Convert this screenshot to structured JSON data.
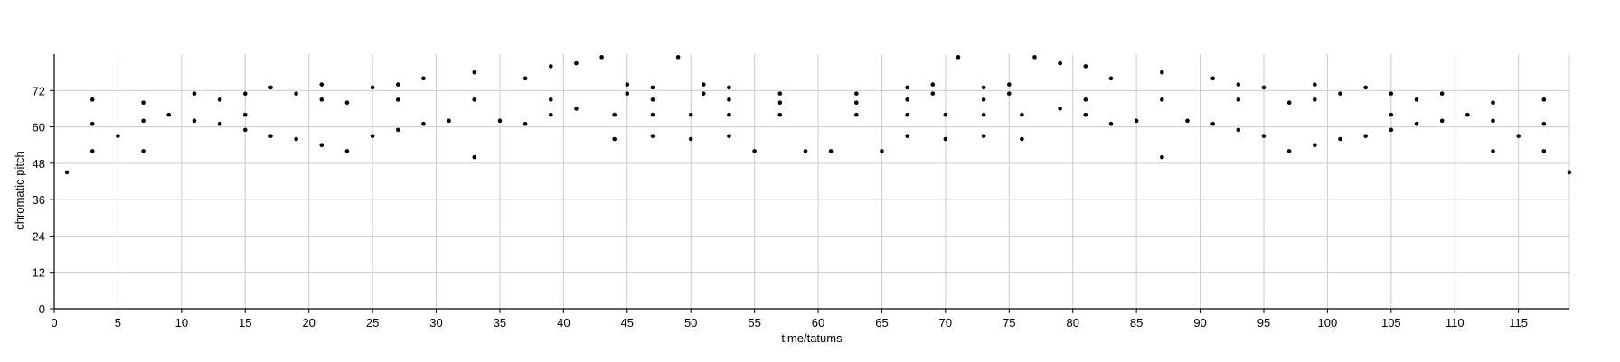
{
  "chart_data": {
    "type": "scatter",
    "title": "",
    "xlabel": "time/tatums",
    "ylabel": "chromatic pitch",
    "xlim": [
      0,
      119
    ],
    "ylim": [
      0,
      84
    ],
    "grid": true,
    "legend": "none",
    "colors": {
      "point": "#000000",
      "grid": "#cccccc",
      "axis": "#000000"
    },
    "x_ticks": [
      0,
      5,
      10,
      15,
      20,
      25,
      30,
      35,
      40,
      45,
      50,
      55,
      60,
      65,
      70,
      75,
      80,
      85,
      90,
      95,
      100,
      105,
      110,
      115
    ],
    "x_tick_labels": [
      "0",
      "5",
      "10",
      "15",
      "20",
      "25",
      "30",
      "35",
      "40",
      "45",
      "50",
      "55",
      "60",
      "65",
      "70",
      "75",
      "80",
      "85",
      "90",
      "95",
      "100",
      "105",
      "110",
      "115"
    ],
    "y_ticks": [
      0,
      12,
      24,
      36,
      48,
      60,
      72
    ],
    "y_tick_labels": [
      "0",
      "12",
      "24",
      "36",
      "48",
      "60",
      "72"
    ],
    "points": [
      [
        1,
        45
      ],
      [
        3,
        52
      ],
      [
        3,
        61
      ],
      [
        3,
        69
      ],
      [
        5,
        57
      ],
      [
        7,
        52
      ],
      [
        7,
        62
      ],
      [
        7,
        68
      ],
      [
        9,
        64
      ],
      [
        11,
        62
      ],
      [
        11,
        71
      ],
      [
        13,
        61
      ],
      [
        13,
        69
      ],
      [
        15,
        59
      ],
      [
        15,
        64
      ],
      [
        15,
        71
      ],
      [
        17,
        57
      ],
      [
        17,
        73
      ],
      [
        19,
        56
      ],
      [
        19,
        71
      ],
      [
        21,
        54
      ],
      [
        21,
        69
      ],
      [
        21,
        74
      ],
      [
        23,
        52
      ],
      [
        23,
        68
      ],
      [
        25,
        57
      ],
      [
        25,
        73
      ],
      [
        27,
        59
      ],
      [
        27,
        69
      ],
      [
        27,
        74
      ],
      [
        29,
        61
      ],
      [
        29,
        76
      ],
      [
        31,
        62
      ],
      [
        33,
        50
      ],
      [
        33,
        69
      ],
      [
        33,
        78
      ],
      [
        35,
        62
      ],
      [
        37,
        61
      ],
      [
        37,
        76
      ],
      [
        39,
        64
      ],
      [
        39,
        69
      ],
      [
        39,
        80
      ],
      [
        41,
        66
      ],
      [
        41,
        81
      ],
      [
        43,
        83
      ],
      [
        44,
        56
      ],
      [
        44,
        64
      ],
      [
        45,
        71
      ],
      [
        45,
        74
      ],
      [
        47,
        57
      ],
      [
        47,
        64
      ],
      [
        47,
        69
      ],
      [
        47,
        73
      ],
      [
        49,
        83
      ],
      [
        50,
        56
      ],
      [
        50,
        64
      ],
      [
        51,
        71
      ],
      [
        51,
        74
      ],
      [
        53,
        57
      ],
      [
        53,
        64
      ],
      [
        53,
        69
      ],
      [
        53,
        73
      ],
      [
        55,
        52
      ],
      [
        57,
        64
      ],
      [
        57,
        68
      ],
      [
        57,
        71
      ],
      [
        59,
        52
      ],
      [
        61,
        52
      ],
      [
        63,
        64
      ],
      [
        63,
        68
      ],
      [
        63,
        71
      ],
      [
        65,
        52
      ],
      [
        67,
        57
      ],
      [
        67,
        64
      ],
      [
        67,
        69
      ],
      [
        67,
        73
      ],
      [
        69,
        71
      ],
      [
        69,
        74
      ],
      [
        70,
        56
      ],
      [
        70,
        64
      ],
      [
        71,
        83
      ],
      [
        73,
        57
      ],
      [
        73,
        64
      ],
      [
        73,
        69
      ],
      [
        73,
        73
      ],
      [
        75,
        71
      ],
      [
        75,
        74
      ],
      [
        76,
        56
      ],
      [
        76,
        64
      ],
      [
        77,
        83
      ],
      [
        79,
        66
      ],
      [
        79,
        81
      ],
      [
        81,
        64
      ],
      [
        81,
        69
      ],
      [
        81,
        80
      ],
      [
        83,
        61
      ],
      [
        83,
        76
      ],
      [
        85,
        62
      ],
      [
        87,
        50
      ],
      [
        87,
        69
      ],
      [
        87,
        78
      ],
      [
        89,
        62
      ],
      [
        91,
        61
      ],
      [
        91,
        76
      ],
      [
        93,
        59
      ],
      [
        93,
        69
      ],
      [
        93,
        74
      ],
      [
        95,
        57
      ],
      [
        95,
        73
      ],
      [
        97,
        52
      ],
      [
        97,
        68
      ],
      [
        99,
        54
      ],
      [
        99,
        69
      ],
      [
        99,
        74
      ],
      [
        101,
        56
      ],
      [
        101,
        71
      ],
      [
        103,
        57
      ],
      [
        103,
        73
      ],
      [
        105,
        59
      ],
      [
        105,
        64
      ],
      [
        105,
        71
      ],
      [
        107,
        61
      ],
      [
        107,
        69
      ],
      [
        109,
        62
      ],
      [
        109,
        71
      ],
      [
        111,
        64
      ],
      [
        113,
        52
      ],
      [
        113,
        62
      ],
      [
        113,
        68
      ],
      [
        115,
        57
      ],
      [
        117,
        52
      ],
      [
        117,
        61
      ],
      [
        117,
        69
      ],
      [
        119,
        45
      ]
    ]
  }
}
